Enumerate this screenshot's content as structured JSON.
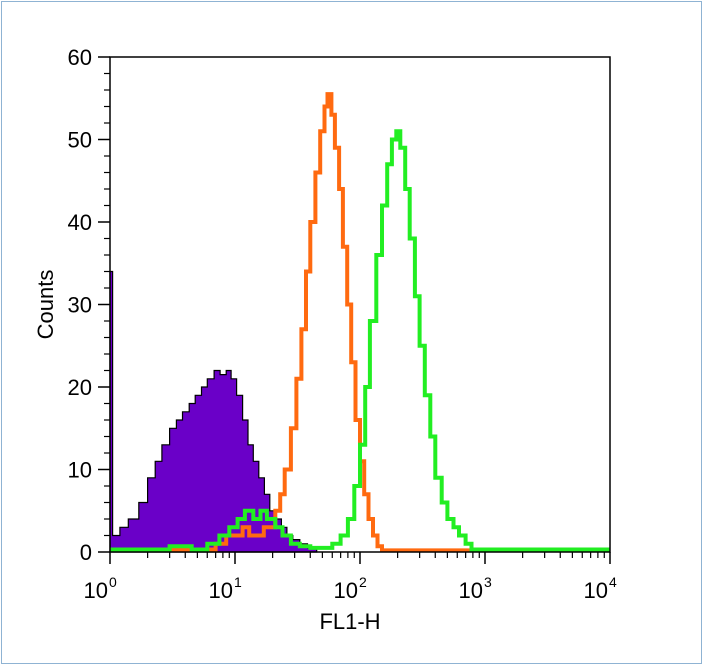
{
  "chart_data": {
    "type": "area",
    "xlabel": "FL1-H",
    "ylabel": "Counts",
    "x_scale": "log",
    "xlim": [
      1,
      10000
    ],
    "ylim": [
      0,
      60
    ],
    "x_ticks": [
      {
        "base": "10",
        "exp": "0",
        "value": 1
      },
      {
        "base": "10",
        "exp": "1",
        "value": 10
      },
      {
        "base": "10",
        "exp": "2",
        "value": 100
      },
      {
        "base": "10",
        "exp": "3",
        "value": 1000
      },
      {
        "base": "10",
        "exp": "4",
        "value": 10000
      }
    ],
    "y_ticks": [
      "0",
      "10",
      "20",
      "30",
      "40",
      "50",
      "60"
    ],
    "grid": false,
    "series": [
      {
        "color": "#6a00c8",
        "style": "filled",
        "points": [
          [
            1.0,
            34
          ],
          [
            1.05,
            2
          ],
          [
            1.2,
            3
          ],
          [
            1.4,
            4
          ],
          [
            1.7,
            6
          ],
          [
            2.0,
            9
          ],
          [
            2.3,
            11
          ],
          [
            2.6,
            13
          ],
          [
            3.0,
            15
          ],
          [
            3.4,
            16
          ],
          [
            3.8,
            17
          ],
          [
            4.3,
            18
          ],
          [
            4.8,
            19
          ],
          [
            5.4,
            20
          ],
          [
            6.0,
            21
          ],
          [
            6.8,
            22
          ],
          [
            7.6,
            21.5
          ],
          [
            8.5,
            22
          ],
          [
            9.3,
            21
          ],
          [
            10.3,
            19
          ],
          [
            11.5,
            16
          ],
          [
            12.7,
            13
          ],
          [
            14.0,
            11
          ],
          [
            15.5,
            9
          ],
          [
            17.2,
            7
          ],
          [
            19.0,
            5
          ],
          [
            21.0,
            4
          ],
          [
            23.5,
            3
          ],
          [
            26.0,
            2
          ],
          [
            29.0,
            1.5
          ],
          [
            33.0,
            1
          ],
          [
            38.0,
            0.5
          ],
          [
            45.0,
            0
          ]
        ]
      },
      {
        "color": "#ff6a10",
        "style": "line",
        "points": [
          [
            1.0,
            0.3
          ],
          [
            5.0,
            0.3
          ],
          [
            7.0,
            1
          ],
          [
            8.5,
            2
          ],
          [
            10.0,
            2
          ],
          [
            11.5,
            3
          ],
          [
            13.0,
            2
          ],
          [
            15.0,
            2
          ],
          [
            17.0,
            3
          ],
          [
            19.0,
            3
          ],
          [
            21.0,
            5
          ],
          [
            23.0,
            7
          ],
          [
            25.0,
            10
          ],
          [
            28.0,
            15
          ],
          [
            31.0,
            21
          ],
          [
            34.0,
            27
          ],
          [
            37.0,
            34
          ],
          [
            40.0,
            40
          ],
          [
            44.0,
            46
          ],
          [
            48.0,
            51
          ],
          [
            52.0,
            54
          ],
          [
            55.0,
            55.5
          ],
          [
            59.0,
            53
          ],
          [
            63.0,
            49
          ],
          [
            68.0,
            44
          ],
          [
            73.0,
            37
          ],
          [
            79.0,
            30
          ],
          [
            85.0,
            23
          ],
          [
            92.0,
            16
          ],
          [
            100.0,
            11
          ],
          [
            108.0,
            7
          ],
          [
            117.0,
            4
          ],
          [
            127.0,
            2
          ],
          [
            138.0,
            0.7
          ],
          [
            150.0,
            0.2
          ],
          [
            10000.0,
            0.2
          ]
        ]
      },
      {
        "color": "#22ee22",
        "style": "line",
        "points": [
          [
            1.0,
            0.3
          ],
          [
            2.0,
            0.3
          ],
          [
            3.0,
            0.7
          ],
          [
            4.5,
            0.3
          ],
          [
            6.0,
            1
          ],
          [
            7.5,
            2
          ],
          [
            9.0,
            3
          ],
          [
            10.5,
            4
          ],
          [
            12.0,
            5
          ],
          [
            14.0,
            4
          ],
          [
            16.0,
            5
          ],
          [
            18.0,
            4
          ],
          [
            21.0,
            3
          ],
          [
            24.0,
            2
          ],
          [
            28.0,
            1
          ],
          [
            33.0,
            0.7
          ],
          [
            40.0,
            0.5
          ],
          [
            50.0,
            0.5
          ],
          [
            60.0,
            1
          ],
          [
            70.0,
            2
          ],
          [
            80.0,
            4
          ],
          [
            90.0,
            8
          ],
          [
            100.0,
            13
          ],
          [
            110.0,
            20
          ],
          [
            120.0,
            28
          ],
          [
            135.0,
            36
          ],
          [
            150.0,
            42
          ],
          [
            165.0,
            47
          ],
          [
            180.0,
            50
          ],
          [
            195.0,
            51
          ],
          [
            210.0,
            49
          ],
          [
            230.0,
            44
          ],
          [
            250.0,
            38
          ],
          [
            275.0,
            31
          ],
          [
            300.0,
            25
          ],
          [
            330.0,
            19
          ],
          [
            365.0,
            14
          ],
          [
            400.0,
            9
          ],
          [
            450.0,
            6
          ],
          [
            500.0,
            4
          ],
          [
            560.0,
            3
          ],
          [
            620.0,
            2
          ],
          [
            700.0,
            1
          ],
          [
            780.0,
            0.3
          ],
          [
            10000.0,
            0.3
          ]
        ]
      }
    ]
  }
}
